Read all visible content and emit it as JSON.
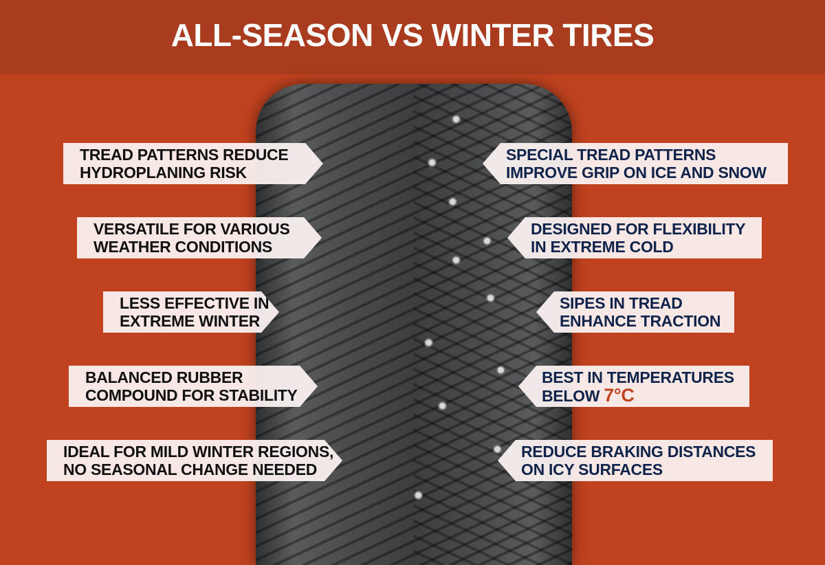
{
  "title": "ALL-SEASON VS WINTER TIRES",
  "colors": {
    "background": "#c0421f",
    "header": "#a93b1f",
    "left_text": "#111111",
    "right_text": "#10234a",
    "highlight": "#c0421f"
  },
  "all_season": [
    {
      "line1": "TREAD PATTERNS REDUCE",
      "line2": "HYDROPLANING RISK"
    },
    {
      "line1": "VERSATILE FOR VARIOUS",
      "line2": "WEATHER CONDITIONS"
    },
    {
      "line1": "LESS EFFECTIVE IN",
      "line2": "EXTREME WINTER"
    },
    {
      "line1": "BALANCED RUBBER",
      "line2": "COMPOUND FOR STABILITY"
    },
    {
      "line1": "IDEAL FOR MILD WINTER REGIONS,",
      "line2": "NO SEASONAL CHANGE NEEDED"
    }
  ],
  "winter": [
    {
      "line1": "SPECIAL TREAD PATTERNS",
      "line2": "IMPROVE GRIP ON ICE AND SNOW"
    },
    {
      "line1": "DESIGNED FOR FLEXIBILITY",
      "line2": "IN EXTREME COLD"
    },
    {
      "line1": "SIPES IN TREAD",
      "line2": "ENHANCE TRACTION"
    },
    {
      "line1": "BEST IN TEMPERATURES",
      "line2": "BELOW",
      "highlight": "7°C"
    },
    {
      "line1": "REDUCE BRAKING DISTANCES",
      "line2": "ON ICY SURFACES"
    }
  ]
}
